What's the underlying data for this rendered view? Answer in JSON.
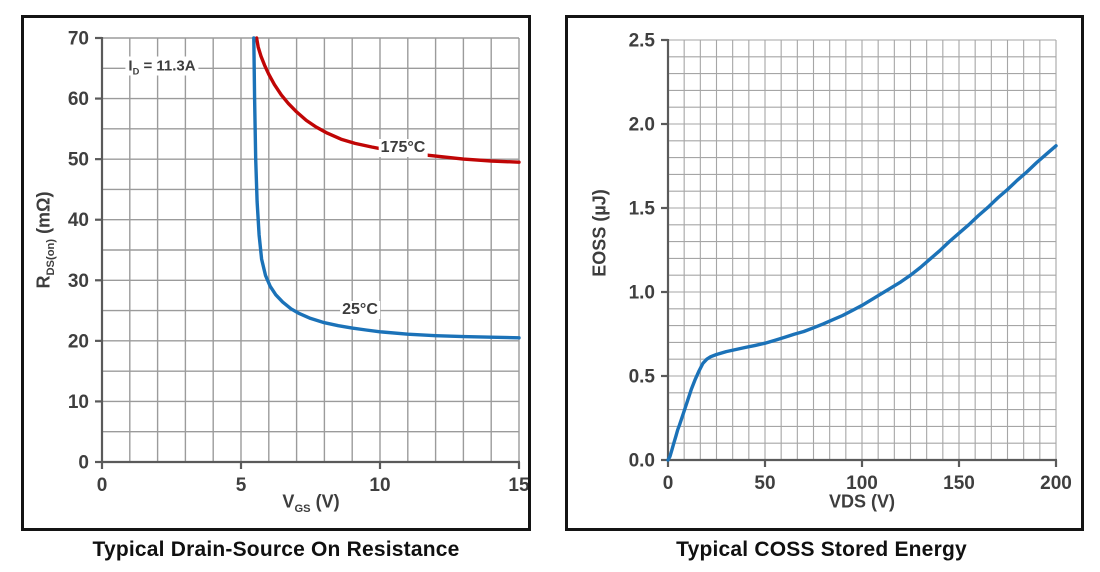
{
  "colors": {
    "curve_red": "#c00505",
    "curve_blue": "#1b72b8",
    "grid_left": "#9b9b9b",
    "grid_right": "#a6a6a6",
    "axis": "#5a5a5a",
    "tick_text": "#3f3f3f",
    "frame": "#141414",
    "title_text": "#101010"
  },
  "chart_data": [
    {
      "type": "line",
      "title": "Typical Drain-Source On Resistance",
      "xlabel": "VGS (V)",
      "ylabel": "RDS(on) (mΩ)",
      "xlabel_parts": {
        "main": "V",
        "sub": "GS",
        "rest": " (V)"
      },
      "ylabel_parts": {
        "main": "R",
        "sub": "DS(on)",
        "rest": " (mΩ)"
      },
      "annotation": {
        "main": "I",
        "sub": "D",
        "rest": " = 11.3A"
      },
      "xlim": [
        0,
        15
      ],
      "ylim": [
        0,
        70
      ],
      "x_minor_step": 1,
      "y_minor_step": 5,
      "x_tick_values": [
        0,
        5,
        10,
        15
      ],
      "x_tick_labels": [
        "0",
        "5",
        "10",
        "15"
      ],
      "y_tick_values": [
        0,
        10,
        20,
        30,
        40,
        50,
        60,
        70
      ],
      "y_tick_labels": [
        "0",
        "10",
        "20",
        "30",
        "40",
        "50",
        "60",
        "70"
      ],
      "grid": "minor on, square cells",
      "legend_position": "inline curve labels",
      "series": [
        {
          "name": "175°C",
          "label": "175°C",
          "color": "#c00505",
          "points": [
            [
              5.56,
              70
            ],
            [
              5.62,
              68.5
            ],
            [
              5.72,
              67
            ],
            [
              5.85,
              65.5
            ],
            [
              6.0,
              64
            ],
            [
              6.2,
              62.3
            ],
            [
              6.45,
              60.6
            ],
            [
              6.7,
              59.2
            ],
            [
              7.0,
              57.8
            ],
            [
              7.35,
              56.4
            ],
            [
              7.7,
              55.3
            ],
            [
              8.1,
              54.3
            ],
            [
              8.6,
              53.3
            ],
            [
              9.1,
              52.6
            ],
            [
              9.7,
              52.0
            ],
            [
              10.4,
              51.4
            ],
            [
              11.2,
              50.9
            ],
            [
              12.0,
              50.5
            ],
            [
              13.0,
              50.0
            ],
            [
              14.0,
              49.7
            ],
            [
              15.0,
              49.5
            ]
          ]
        },
        {
          "name": "25°C",
          "label": "25°C",
          "color": "#1b72b8",
          "points": [
            [
              5.46,
              70
            ],
            [
              5.49,
              60
            ],
            [
              5.53,
              50
            ],
            [
              5.58,
              43
            ],
            [
              5.65,
              37.5
            ],
            [
              5.74,
              33.5
            ],
            [
              5.88,
              30.8
            ],
            [
              6.05,
              29.0
            ],
            [
              6.25,
              27.6
            ],
            [
              6.5,
              26.4
            ],
            [
              6.8,
              25.3
            ],
            [
              7.1,
              24.5
            ],
            [
              7.5,
              23.7
            ],
            [
              8.0,
              23.0
            ],
            [
              8.5,
              22.5
            ],
            [
              9.0,
              22.1
            ],
            [
              9.5,
              21.8
            ],
            [
              10.0,
              21.5
            ],
            [
              11.0,
              21.1
            ],
            [
              12.0,
              20.85
            ],
            [
              13.0,
              20.7
            ],
            [
              14.0,
              20.6
            ],
            [
              15.0,
              20.5
            ]
          ]
        }
      ]
    },
    {
      "type": "line",
      "title": "Typical COSS Stored Energy",
      "xlabel": "VDS (V)",
      "ylabel": "EOSS (µJ)",
      "xlim": [
        0,
        200
      ],
      "ylim": [
        0,
        2.5
      ],
      "x_minor_step": 8.3333,
      "y_minor_step": 0.1,
      "x_tick_values": [
        0,
        50,
        100,
        150,
        200
      ],
      "x_tick_labels": [
        "0",
        "50",
        "100",
        "150",
        "200"
      ],
      "y_tick_values": [
        0.0,
        0.5,
        1.0,
        1.5,
        2.0,
        2.5
      ],
      "y_tick_labels": [
        "0.0",
        "0.5",
        "1.0",
        "1.5",
        "2.0",
        "2.5"
      ],
      "grid": "minor on, square cells",
      "legend_position": "none",
      "series": [
        {
          "name": "EOSS",
          "label": "",
          "color": "#1b72b8",
          "points": [
            [
              0,
              0
            ],
            [
              1,
              0.02
            ],
            [
              2,
              0.06
            ],
            [
              3,
              0.1
            ],
            [
              4,
              0.14
            ],
            [
              5,
              0.18
            ],
            [
              6,
              0.21
            ],
            [
              8,
              0.28
            ],
            [
              10,
              0.35
            ],
            [
              12,
              0.42
            ],
            [
              14,
              0.48
            ],
            [
              16,
              0.53
            ],
            [
              18,
              0.575
            ],
            [
              20,
              0.6
            ],
            [
              22,
              0.615
            ],
            [
              25,
              0.628
            ],
            [
              30,
              0.645
            ],
            [
              35,
              0.658
            ],
            [
              40,
              0.67
            ],
            [
              45,
              0.682
            ],
            [
              50,
              0.695
            ],
            [
              55,
              0.712
            ],
            [
              60,
              0.73
            ],
            [
              65,
              0.748
            ],
            [
              70,
              0.765
            ],
            [
              75,
              0.787
            ],
            [
              80,
              0.81
            ],
            [
              85,
              0.835
            ],
            [
              90,
              0.86
            ],
            [
              95,
              0.89
            ],
            [
              100,
              0.92
            ],
            [
              105,
              0.955
            ],
            [
              110,
              0.99
            ],
            [
              115,
              1.025
            ],
            [
              120,
              1.06
            ],
            [
              125,
              1.1
            ],
            [
              130,
              1.145
            ],
            [
              135,
              1.195
            ],
            [
              140,
              1.245
            ],
            [
              145,
              1.3
            ],
            [
              150,
              1.35
            ],
            [
              155,
              1.4
            ],
            [
              160,
              1.455
            ],
            [
              165,
              1.505
            ],
            [
              170,
              1.56
            ],
            [
              175,
              1.61
            ],
            [
              180,
              1.665
            ],
            [
              185,
              1.715
            ],
            [
              190,
              1.77
            ],
            [
              195,
              1.82
            ],
            [
              200,
              1.87
            ]
          ]
        }
      ]
    }
  ]
}
